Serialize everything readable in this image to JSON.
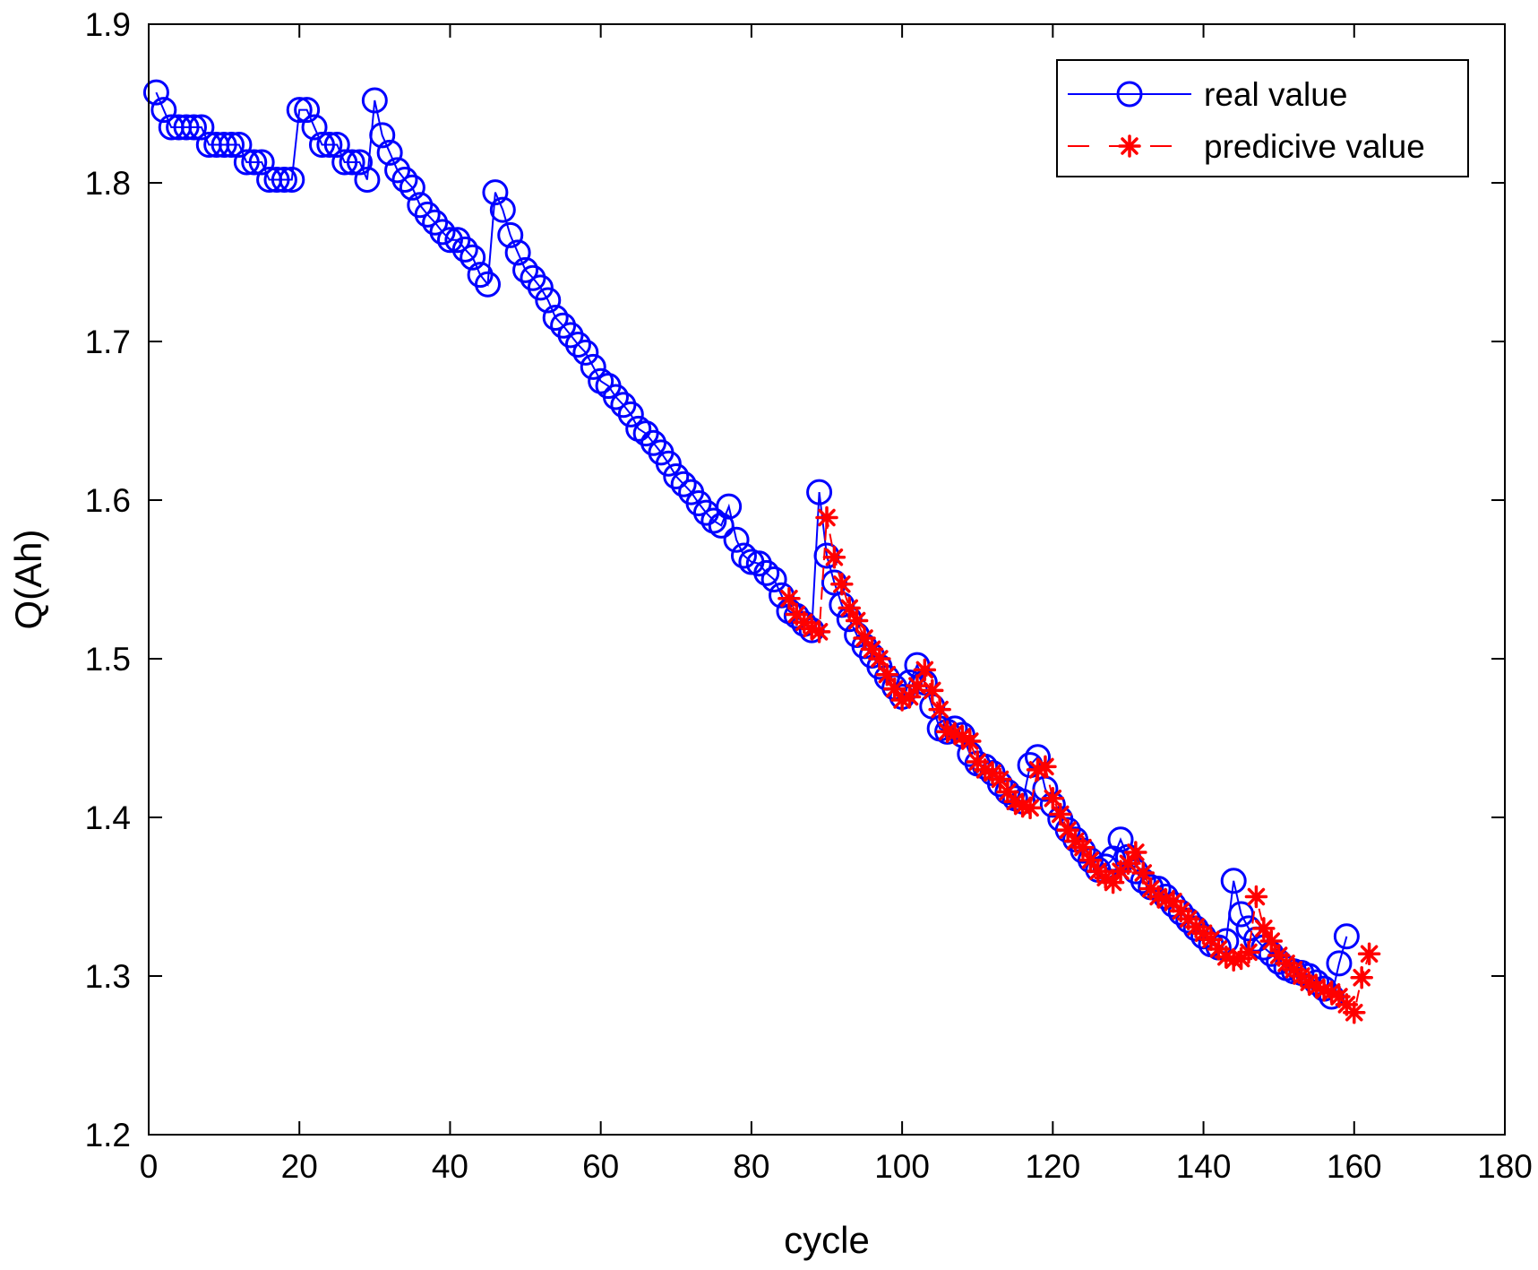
{
  "colors": {
    "real": "#0000ff",
    "pred": "#ff0000",
    "axis": "#000000",
    "background": "#ffffff"
  },
  "chart_data": {
    "type": "line",
    "title": "",
    "xlabel": "cycle",
    "ylabel": "Q(Ah)",
    "xlim": [
      0,
      180
    ],
    "ylim": [
      1.2,
      1.9
    ],
    "xticks": [
      0,
      20,
      40,
      60,
      80,
      100,
      120,
      140,
      160,
      180
    ],
    "yticks": [
      1.2,
      1.3,
      1.4,
      1.5,
      1.6,
      1.7,
      1.8,
      1.9
    ],
    "ytick_labels": [
      "1.2",
      "1.3",
      "1.4",
      "1.5",
      "1.6",
      "1.7",
      "1.8",
      "1.9"
    ],
    "grid": false,
    "legend_position": "top-right",
    "series": [
      {
        "name": "real value",
        "marker": "circle",
        "line": "solid",
        "x_start": 1,
        "values": [
          1.857,
          1.846,
          1.835,
          1.835,
          1.835,
          1.835,
          1.835,
          1.824,
          1.824,
          1.824,
          1.824,
          1.824,
          1.813,
          1.813,
          1.813,
          1.802,
          1.802,
          1.802,
          1.802,
          1.846,
          1.846,
          1.835,
          1.824,
          1.824,
          1.824,
          1.813,
          1.813,
          1.813,
          1.802,
          1.852,
          1.83,
          1.819,
          1.808,
          1.802,
          1.797,
          1.786,
          1.78,
          1.775,
          1.769,
          1.764,
          1.764,
          1.758,
          1.753,
          1.742,
          1.736,
          1.794,
          1.783,
          1.767,
          1.756,
          1.745,
          1.74,
          1.734,
          1.726,
          1.715,
          1.71,
          1.704,
          1.698,
          1.693,
          1.684,
          1.675,
          1.672,
          1.665,
          1.66,
          1.654,
          1.645,
          1.642,
          1.636,
          1.63,
          1.623,
          1.615,
          1.61,
          1.605,
          1.598,
          1.592,
          1.587,
          1.584,
          1.596,
          1.575,
          1.565,
          1.561,
          1.56,
          1.554,
          1.55,
          1.54,
          1.53,
          1.527,
          1.522,
          1.518,
          1.605,
          1.565,
          1.548,
          1.534,
          1.525,
          1.515,
          1.508,
          1.502,
          1.495,
          1.488,
          1.482,
          1.476,
          1.485,
          1.496,
          1.485,
          1.47,
          1.456,
          1.454,
          1.456,
          1.452,
          1.44,
          1.434,
          1.432,
          1.428,
          1.421,
          1.416,
          1.412,
          1.41,
          1.433,
          1.438,
          1.418,
          1.408,
          1.399,
          1.392,
          1.386,
          1.379,
          1.373,
          1.367,
          1.369,
          1.374,
          1.386,
          1.375,
          1.366,
          1.36,
          1.356,
          1.355,
          1.35,
          1.345,
          1.34,
          1.335,
          1.33,
          1.325,
          1.32,
          1.318,
          1.322,
          1.36,
          1.339,
          1.33,
          1.323,
          1.318,
          1.314,
          1.309,
          1.305,
          1.303,
          1.302,
          1.3,
          1.296,
          1.292,
          1.287,
          1.308,
          1.325
        ]
      },
      {
        "name": "predicive value",
        "marker": "star",
        "line": "dashed",
        "x_start": 85,
        "values": [
          1.538,
          1.528,
          1.523,
          1.519,
          1.517,
          1.589,
          1.564,
          1.547,
          1.532,
          1.524,
          1.513,
          1.506,
          1.5,
          1.49,
          1.481,
          1.474,
          1.476,
          1.483,
          1.493,
          1.48,
          1.468,
          1.454,
          1.453,
          1.451,
          1.448,
          1.435,
          1.43,
          1.428,
          1.424,
          1.416,
          1.41,
          1.407,
          1.406,
          1.43,
          1.432,
          1.412,
          1.402,
          1.392,
          1.385,
          1.381,
          1.373,
          1.366,
          1.362,
          1.359,
          1.366,
          1.371,
          1.378,
          1.365,
          1.355,
          1.35,
          1.348,
          1.347,
          1.341,
          1.336,
          1.331,
          1.327,
          1.323,
          1.317,
          1.312,
          1.31,
          1.311,
          1.315,
          1.35,
          1.33,
          1.322,
          1.313,
          1.308,
          1.304,
          1.3,
          1.296,
          1.293,
          1.291,
          1.29,
          1.287,
          1.282,
          1.277,
          1.299,
          1.314
        ]
      }
    ]
  }
}
